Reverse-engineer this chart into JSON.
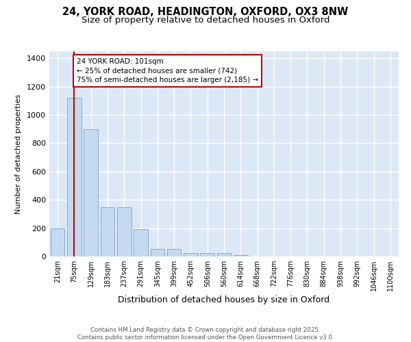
{
  "title_line1": "24, YORK ROAD, HEADINGTON, OXFORD, OX3 8NW",
  "title_line2": "Size of property relative to detached houses in Oxford",
  "xlabel": "Distribution of detached houses by size in Oxford",
  "ylabel": "Number of detached properties",
  "bar_color": "#c5d9f0",
  "bar_edge_color": "#7bafd4",
  "plot_bg_color": "#dce8f5",
  "annotation_box_color": "#cc0000",
  "annotation_text": "24 YORK ROAD: 101sqm\n← 25% of detached houses are smaller (742)\n75% of semi-detached houses are larger (2,185) →",
  "categories": [
    "21sqm",
    "75sqm",
    "129sqm",
    "183sqm",
    "237sqm",
    "291sqm",
    "345sqm",
    "399sqm",
    "452sqm",
    "506sqm",
    "560sqm",
    "614sqm",
    "668sqm",
    "722sqm",
    "776sqm",
    "830sqm",
    "884sqm",
    "938sqm",
    "992sqm",
    "1046sqm",
    "1100sqm"
  ],
  "values": [
    200,
    1120,
    900,
    350,
    350,
    195,
    55,
    55,
    25,
    25,
    25,
    10,
    0,
    0,
    0,
    0,
    0,
    0,
    0,
    0,
    0
  ],
  "ylim": [
    0,
    1450
  ],
  "yticks": [
    0,
    200,
    400,
    600,
    800,
    1000,
    1200,
    1400
  ],
  "red_line_xval": 1.0,
  "footnote": "Contains HM Land Registry data © Crown copyright and database right 2025.\nContains public sector information licensed under the Open Government Licence v3.0."
}
